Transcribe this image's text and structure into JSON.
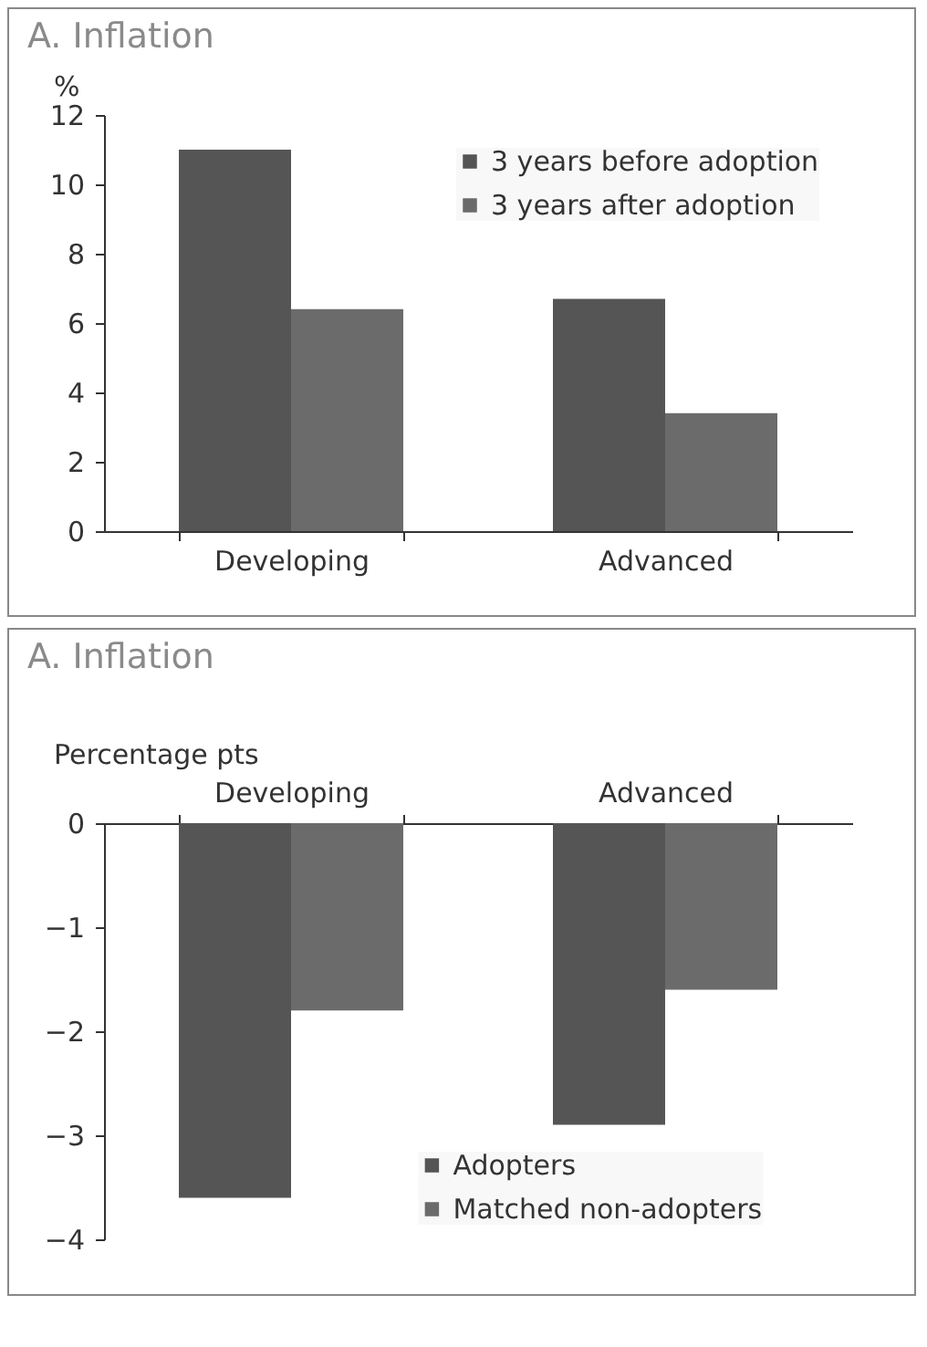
{
  "chart_data": [
    {
      "type": "bar",
      "title": "A. Inflation",
      "ylabel": "%",
      "categories": [
        "Developing",
        "Advanced"
      ],
      "ylim": [
        0,
        12
      ],
      "yticks": [
        0,
        2,
        4,
        6,
        8,
        10,
        12
      ],
      "legend": "top right",
      "series": [
        {
          "name": "3 years before adoption",
          "color": "#555555",
          "values": [
            11.0,
            6.7
          ]
        },
        {
          "name": "3 years after adoption",
          "color": "#6b6b6b",
          "values": [
            6.4,
            3.4
          ]
        }
      ]
    },
    {
      "type": "bar",
      "title": "A. Inflation",
      "ylabel": "Percentage pts",
      "categories": [
        "Developing",
        "Advanced"
      ],
      "ylim": [
        -4,
        0
      ],
      "yticks": [
        -4,
        -3,
        -2,
        -1,
        0
      ],
      "legend": "bottom",
      "series": [
        {
          "name": "Adopters",
          "color": "#555555",
          "values": [
            -3.6,
            -2.9
          ]
        },
        {
          "name": "Matched non-adopters",
          "color": "#6b6b6b",
          "values": [
            -1.8,
            -1.6
          ]
        }
      ]
    }
  ]
}
